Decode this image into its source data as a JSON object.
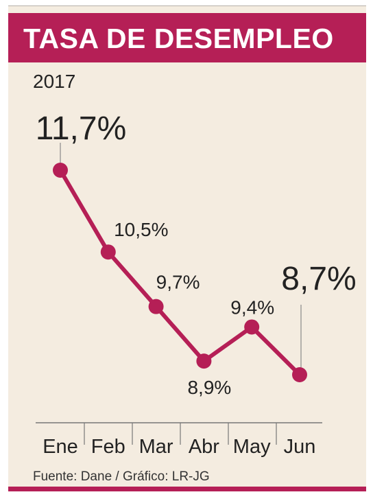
{
  "header": {
    "title": "TASA DE DESEMPLEO"
  },
  "subtitle": "2017",
  "source": "Fuente: Dane / Gráfico: LR-JG",
  "colors": {
    "accent": "#b51f56",
    "background": "#f4ece0",
    "text": "#222222"
  },
  "chart_data": {
    "type": "line",
    "title": "TASA DE DESEMPLEO",
    "subtitle": "2017",
    "categories": [
      "Ene",
      "Feb",
      "Mar",
      "Abr",
      "May",
      "Jun"
    ],
    "series": [
      {
        "values": [
          11.7,
          10.5,
          9.7,
          8.9,
          9.4,
          8.7
        ],
        "labels": [
          "11,7%",
          "10,5%",
          "9,7%",
          "8,9%",
          "9,4%",
          "8,7%"
        ]
      }
    ],
    "xlabel": "",
    "ylabel": "",
    "grid": false,
    "legend": "none"
  }
}
